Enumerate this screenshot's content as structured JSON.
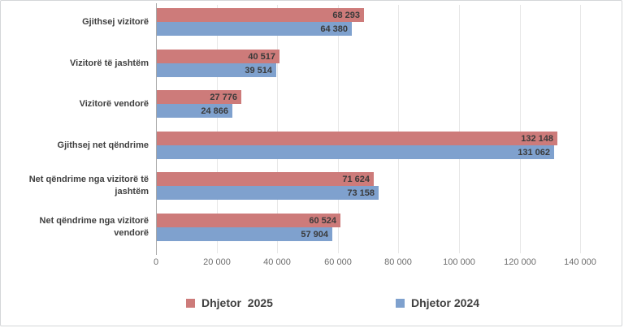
{
  "chart_data": {
    "type": "bar",
    "orientation": "horizontal",
    "title": "",
    "xlabel": "",
    "ylabel": "",
    "categories": [
      "Gjithsej vizitorë",
      "Vizitorë të jashtëm",
      "Vizitorë vendorë",
      "Gjithsej net qëndrime",
      "Net qëndrime nga vizitorë të jashtëm",
      "Net qëndrime nga vizitorë vendorë"
    ],
    "series": [
      {
        "name": "Dhjetor  2025",
        "color": "#cd7b7a",
        "values": [
          68293,
          40517,
          27776,
          132148,
          71624,
          60524
        ],
        "value_labels": [
          "68 293",
          "40 517",
          "27 776",
          "132 148",
          "71 624",
          "60 524"
        ]
      },
      {
        "name": "Dhjetor 2024",
        "color": "#7fa1ce",
        "values": [
          64380,
          39514,
          24866,
          131062,
          73158,
          57904
        ],
        "value_labels": [
          "64 380",
          "39 514",
          "24 866",
          "131 062",
          "73 158",
          "57 904"
        ]
      }
    ],
    "x_axis": {
      "min": 0,
      "max": 140000,
      "tick_interval": 20000,
      "ticks": [
        0,
        20000,
        40000,
        60000,
        80000,
        100000,
        120000,
        140000
      ],
      "tick_labels": [
        "0",
        "20 000",
        "40 000",
        "60 000",
        "80 000",
        "100 000",
        "120 000",
        "140 000"
      ]
    },
    "grid": true,
    "legend_position": "bottom",
    "data_label_position": "inside-end",
    "colors": {
      "grid": "#e7e7e7",
      "axis": "#a9a9a9",
      "value_text": "#3a3a3a",
      "category_text": "#3f3f3f",
      "tick_text": "#6e6e6e",
      "legend_text": "#404040",
      "border": "#d4d6d8"
    }
  }
}
